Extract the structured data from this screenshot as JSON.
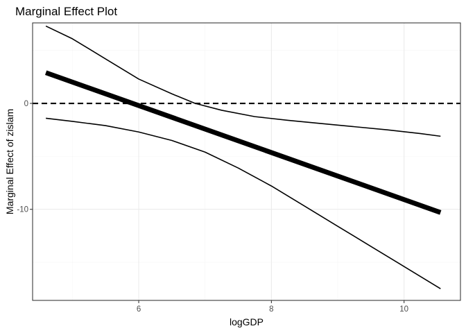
{
  "chart_data": {
    "type": "line",
    "title": "Marginal Effect Plot",
    "xlabel": "logGDP",
    "ylabel": "Marginal Effect of zislam",
    "xlim": [
      4.4,
      10.85
    ],
    "ylim": [
      -18.6,
      7.6
    ],
    "x_ticks": [
      6,
      8,
      10
    ],
    "x_tick_labels": [
      "6",
      "8",
      "10"
    ],
    "x_minor_ticks": [
      5,
      7,
      9
    ],
    "y_ticks": [
      0,
      -10
    ],
    "y_tick_labels": [
      "0",
      "-10"
    ],
    "y_minor_ticks": [
      5,
      -5,
      -15
    ],
    "grid": true,
    "reference_line": {
      "y": 0,
      "style": "dashed"
    },
    "series": [
      {
        "role": "estimate",
        "x": [
          4.6,
          10.55
        ],
        "y": [
          2.9,
          -10.3
        ]
      },
      {
        "role": "upper-bound",
        "x": [
          4.6,
          5.0,
          5.5,
          6.0,
          6.5,
          6.85,
          7.25,
          7.75,
          8.25,
          8.75,
          9.25,
          9.75,
          10.25,
          10.55
        ],
        "y": [
          7.3,
          6.1,
          4.2,
          2.3,
          0.9,
          0.0,
          -0.65,
          -1.25,
          -1.6,
          -1.9,
          -2.2,
          -2.5,
          -2.85,
          -3.1
        ]
      },
      {
        "role": "lower-bound",
        "x": [
          4.6,
          5.0,
          5.5,
          6.0,
          6.5,
          7.0,
          7.5,
          8.0,
          8.5,
          9.0,
          9.5,
          10.0,
          10.55
        ],
        "y": [
          -1.4,
          -1.7,
          -2.1,
          -2.7,
          -3.5,
          -4.6,
          -6.1,
          -7.8,
          -9.7,
          -11.6,
          -13.5,
          -15.4,
          -17.5
        ]
      }
    ]
  }
}
